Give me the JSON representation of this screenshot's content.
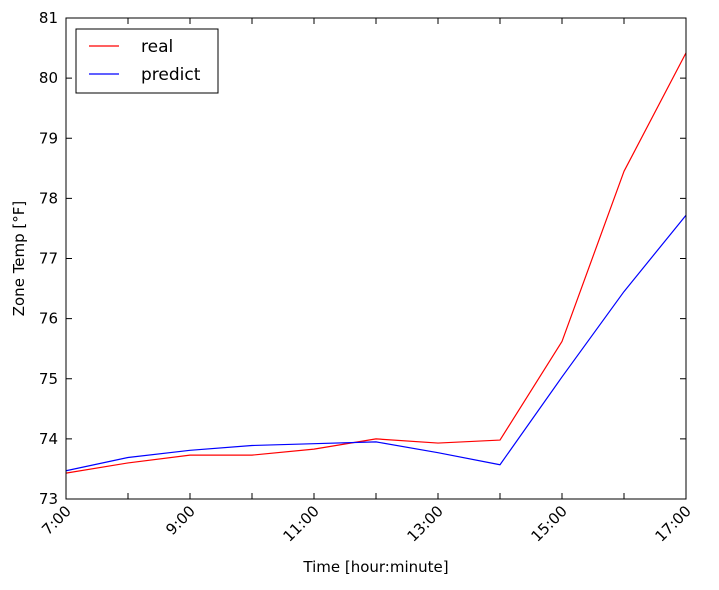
{
  "chart_data": {
    "type": "line",
    "title": "",
    "xlabel": "Time [hour:minute]",
    "ylabel": "Zone Temp [°F]",
    "x": [
      "7:00",
      "8:00",
      "9:00",
      "10:00",
      "11:00",
      "12:00",
      "13:00",
      "14:00",
      "15:00",
      "16:00",
      "17:00"
    ],
    "x_tick_labels": [
      "7:00",
      "9:00",
      "11:00",
      "13:00",
      "15:00",
      "17:00"
    ],
    "y_tick_labels": [
      "73",
      "74",
      "75",
      "76",
      "77",
      "78",
      "79",
      "80",
      "81"
    ],
    "ylim": [
      73,
      81
    ],
    "grid": false,
    "legend_position": "top-left",
    "series": [
      {
        "name": "real",
        "color": "#ff0000",
        "values": [
          73.43,
          73.6,
          73.73,
          73.73,
          73.83,
          74.0,
          73.93,
          73.98,
          75.62,
          78.45,
          80.42
        ]
      },
      {
        "name": "predict",
        "color": "#0000ff",
        "values": [
          73.47,
          73.69,
          73.81,
          73.89,
          73.92,
          73.95,
          73.77,
          73.57,
          75.03,
          76.45,
          77.72
        ]
      }
    ]
  }
}
